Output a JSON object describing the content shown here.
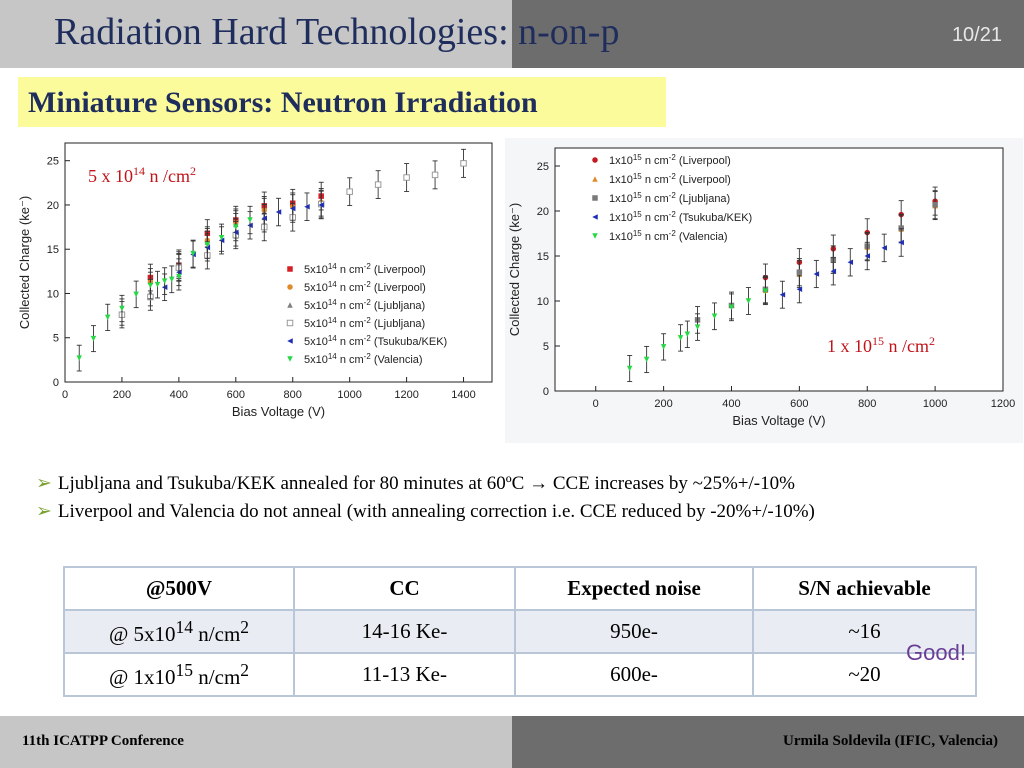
{
  "header": {
    "title": "Radiation Hard Technologies: n-on-p",
    "page": "10/21"
  },
  "subtitle": "Miniature Sensors: Neutron Irradiation",
  "chart_data": [
    {
      "type": "scatter",
      "annotation": {
        "base": "5 x 10",
        "exp": "14",
        "unit": " n /cm",
        "unit_exp": "2"
      },
      "xlabel": "Bias Voltage (V)",
      "ylabel": "Collected Charge (ke⁻)",
      "xlim": [
        0,
        1500
      ],
      "ylim": [
        0,
        27
      ],
      "xticks": [
        0,
        200,
        400,
        600,
        800,
        1000,
        1200,
        1400
      ],
      "yticks": [
        0,
        5,
        10,
        15,
        20,
        25
      ],
      "legend_position": "lower-right",
      "series": [
        {
          "legend": "5x10",
          "exp": "14",
          "legend_rest": " n cm",
          "legend_exp": "-2",
          "lab": " (Liverpool)",
          "color": "#d61f26",
          "marker": "square",
          "x": [
            300,
            400,
            500,
            600,
            700,
            800,
            900
          ],
          "y": [
            11.8,
            13.2,
            16.8,
            18.3,
            19.9,
            20.2,
            21.0
          ]
        },
        {
          "legend": "5x10",
          "exp": "14",
          "legend_rest": " n cm",
          "legend_exp": "-2",
          "lab": "  (Liverpool)",
          "color": "#e08a2a",
          "marker": "circle",
          "x": [
            300,
            400,
            500,
            600,
            700,
            800,
            900
          ],
          "y": [
            11.3,
            13.0,
            16.0,
            18.0,
            19.4,
            19.8,
            20.3
          ]
        },
        {
          "legend": "5x10",
          "exp": "14",
          "legend_rest": " n cm",
          "legend_exp": "-2",
          "lab": " (Ljubljana)",
          "color": "#808080",
          "marker": "triangle",
          "x": [
            200,
            300,
            400,
            500,
            600,
            700
          ],
          "y": [
            7.9,
            10.1,
            13.4,
            15.8,
            17.8,
            19.2
          ]
        },
        {
          "legend": "5x10",
          "exp": "14",
          "legend_rest": " n cm",
          "legend_exp": "-2",
          "lab": " (Ljubljana)",
          "color": "#9a9a9a",
          "marker": "open-square",
          "x": [
            200,
            300,
            400,
            500,
            600,
            700,
            800,
            900,
            1000,
            1100,
            1200,
            1300,
            1400
          ],
          "y": [
            7.6,
            9.6,
            12.9,
            14.3,
            16.6,
            17.5,
            18.6,
            20.1,
            21.5,
            22.3,
            23.1,
            23.4,
            24.7
          ]
        },
        {
          "legend": "5x10",
          "exp": "14",
          "legend_rest": " n cm",
          "legend_exp": "-2",
          "lab": " (Tsukuba/KEK)",
          "color": "#1f2fb5",
          "marker": "triangle-left",
          "x": [
            350,
            400,
            450,
            500,
            550,
            600,
            650,
            700,
            750,
            800,
            850,
            900
          ],
          "y": [
            10.7,
            12.4,
            14.4,
            15.2,
            16.0,
            16.9,
            17.7,
            18.5,
            19.2,
            19.6,
            19.8,
            20.0
          ]
        },
        {
          "legend": "5x10",
          "exp": "14",
          "legend_rest": " n cm",
          "legend_exp": "-2",
          "lab": " (Valencia)",
          "color": "#25d844",
          "marker": "triangle-down",
          "x": [
            50,
            100,
            150,
            200,
            250,
            300,
            325,
            350,
            375,
            400,
            450,
            500,
            550,
            600,
            650
          ],
          "y": [
            2.7,
            4.9,
            7.3,
            8.3,
            9.9,
            10.9,
            11.0,
            11.4,
            11.6,
            11.9,
            14.5,
            15.5,
            16.3,
            17.5,
            18.3
          ]
        }
      ]
    },
    {
      "type": "scatter",
      "annotation": {
        "base": "1 x 10",
        "exp": "15",
        "unit": " n /cm",
        "unit_exp": "2"
      },
      "xlabel": "Bias Voltage (V)",
      "ylabel": "Collected Charge (ke⁻)",
      "xlim": [
        -120,
        1200
      ],
      "ylim": [
        0,
        27
      ],
      "xticks": [
        0,
        200,
        400,
        600,
        800,
        1000,
        1200
      ],
      "yticks": [
        0,
        5,
        10,
        15,
        20,
        25
      ],
      "legend_position": "top-left",
      "series": [
        {
          "legend": "1x10",
          "exp": "15",
          "legend_rest": " n cm",
          "legend_exp": "-2",
          "lab": " (Liverpool)",
          "color": "#c4191f",
          "marker": "circle",
          "x": [
            500,
            600,
            700,
            800,
            900,
            1000
          ],
          "y": [
            12.6,
            14.3,
            15.8,
            17.6,
            19.6,
            21.1
          ]
        },
        {
          "legend": "1x10",
          "exp": "15",
          "legend_rest": " n cm",
          "legend_exp": "-2",
          "lab": " (Liverpool)",
          "color": "#e08a2a",
          "marker": "triangle",
          "x": [
            500,
            600,
            700,
            800,
            900,
            1000
          ],
          "y": [
            11.2,
            13.0,
            14.6,
            16.0,
            18.0,
            20.6
          ]
        },
        {
          "legend": "1x10",
          "exp": "15",
          "legend_rest": " n cm",
          "legend_exp": "-2",
          "lab": " (Ljubljana)",
          "color": "#7a7a7a",
          "marker": "square",
          "x": [
            300,
            400,
            500,
            600,
            700,
            800,
            900,
            1000
          ],
          "y": [
            7.9,
            9.5,
            11.3,
            13.2,
            14.6,
            16.1,
            18.1,
            20.7
          ]
        },
        {
          "legend": "1x10",
          "exp": "15",
          "legend_rest": " n cm",
          "legend_exp": "-2",
          "lab": " (Tsukuba/KEK)",
          "color": "#1f2fb5",
          "marker": "triangle-left",
          "x": [
            550,
            600,
            650,
            700,
            750,
            800,
            850,
            900
          ],
          "y": [
            10.7,
            11.3,
            13.0,
            13.3,
            14.3,
            15.0,
            15.9,
            16.5
          ]
        },
        {
          "legend": "1x10",
          "exp": "15",
          "legend_rest": " n cm",
          "legend_exp": "-2",
          "lab": " (Valencia)",
          "color": "#25d844",
          "marker": "triangle-down",
          "x": [
            100,
            150,
            200,
            250,
            270,
            300,
            350,
            400,
            450,
            500
          ],
          "y": [
            2.5,
            3.5,
            4.9,
            5.9,
            6.3,
            7.1,
            8.3,
            9.3,
            10.0,
            11.1
          ]
        }
      ]
    }
  ],
  "bullets": [
    {
      "arrow": "➢",
      "text": "Ljubljana and Tsukuba/KEK annealed for 80 minutes at 60ºC → CCE increases by ~25%+/-10%"
    },
    {
      "arrow": "➢",
      "text": "Liverpool and Valencia do not anneal (with annealing correction i.e. CCE reduced by -20%+/-10%)"
    }
  ],
  "table": {
    "headers": [
      "@500V",
      "CC",
      "Expected noise",
      "S/N achievable"
    ],
    "rows": [
      {
        "c0_pre": "@ 5x10",
        "c0_exp": "14",
        "c0_mid": " n/cm",
        "c0_exp2": "2",
        "cc": "14-16 Ke-",
        "noise": "950e-",
        "sn": "~16"
      },
      {
        "c0_pre": "@ 1x10",
        "c0_exp": "15",
        "c0_mid": " n/cm",
        "c0_exp2": "2",
        "cc": "11-13 Ke-",
        "noise": "600e-",
        "sn": "~20"
      }
    ],
    "note": "Good!"
  },
  "footer": {
    "left": "11th ICATPP Conference",
    "right": "Urmila Soldevila (IFIC, Valencia)"
  }
}
